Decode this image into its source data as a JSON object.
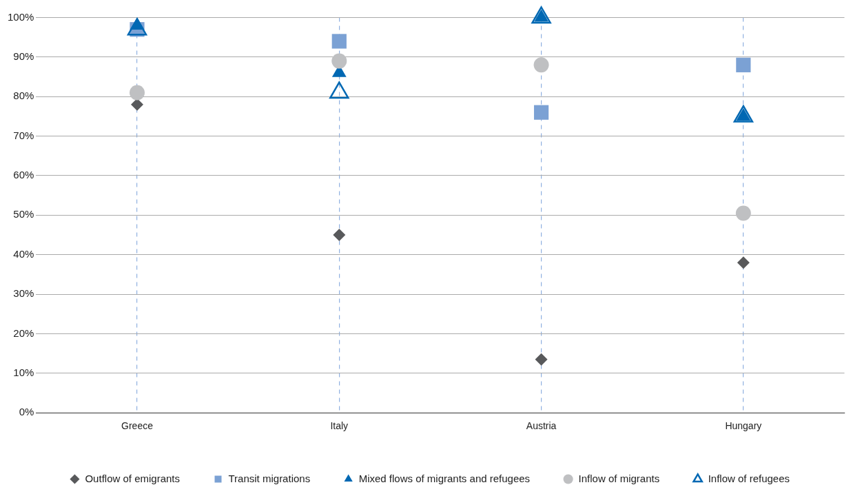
{
  "chart_data": {
    "type": "scatter",
    "categories": [
      "Greece",
      "Italy",
      "Austria",
      "Hungary"
    ],
    "series": [
      {
        "name": "Outflow of emigrants",
        "color": "#58595b",
        "marker": "diamond",
        "values": [
          78,
          45,
          13.5,
          38
        ]
      },
      {
        "name": "Transit migrations",
        "color": "#7ba1d4",
        "marker": "square",
        "values": [
          97,
          94,
          76,
          88
        ]
      },
      {
        "name": "Mixed flows of migrants and refugees",
        "color": "#0068b3",
        "marker": "triangle",
        "values": [
          98,
          86,
          100,
          75
        ]
      },
      {
        "name": "Inflow of migrants",
        "color": "#bfc0c2",
        "marker": "circle",
        "values": [
          81,
          89,
          88,
          50.5
        ]
      },
      {
        "name": "Inflow of refugees",
        "color": "#0068b3",
        "marker": "triangle-open",
        "values": [
          97,
          81,
          100,
          75
        ]
      }
    ],
    "ylim": [
      0,
      100
    ],
    "yticks": [
      {
        "value": 0,
        "label": "0%"
      },
      {
        "value": 10,
        "label": "10%"
      },
      {
        "value": 20,
        "label": "20%"
      },
      {
        "value": 30,
        "label": "30%"
      },
      {
        "value": 40,
        "label": "40%"
      },
      {
        "value": 50,
        "label": "50%"
      },
      {
        "value": 60,
        "label": "60%"
      },
      {
        "value": 70,
        "label": "70%"
      },
      {
        "value": 80,
        "label": "80%"
      },
      {
        "value": 90,
        "label": "90%"
      },
      {
        "value": 100,
        "label": "100%"
      }
    ],
    "grid": true,
    "legend": "bottom"
  }
}
